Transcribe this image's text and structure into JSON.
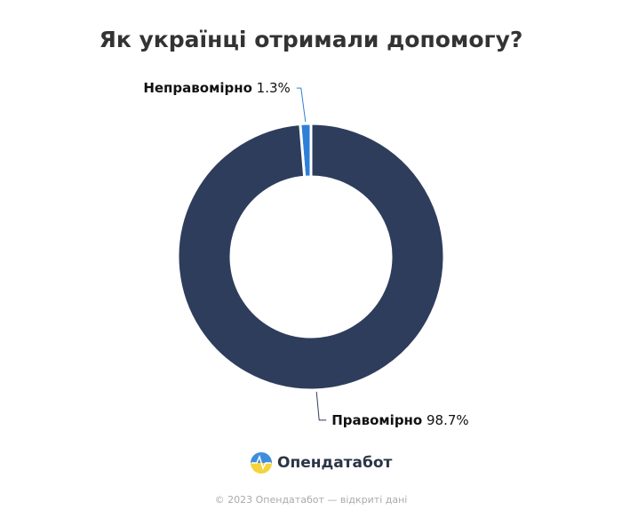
{
  "chart_data": {
    "type": "donut",
    "title": "Як українці отримали допомогу?",
    "categories": [
      "Неправомірно",
      "Правомірно"
    ],
    "values": [
      1.3,
      98.7
    ],
    "value_labels": [
      "1.3%",
      "98.7%"
    ],
    "colors": [
      "#2f7fd8",
      "#2e3d5c"
    ]
  },
  "logo": "Опендатабот",
  "footer": "© 2023 Опендатабот — відкриті дані"
}
